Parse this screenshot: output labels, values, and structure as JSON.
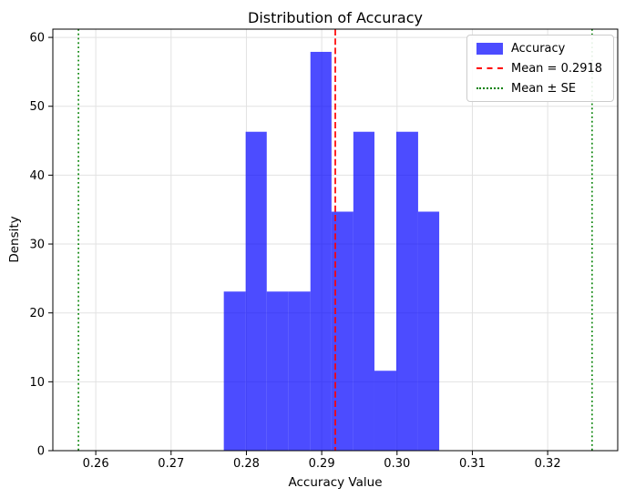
{
  "figure": {
    "title": "Distribution of Accuracy",
    "xlabel": "Accuracy Value",
    "ylabel": "Density"
  },
  "legend": {
    "position": "upper right",
    "items": [
      {
        "label": "Accuracy",
        "swatch": "blue-filled-patch"
      },
      {
        "label": "Mean = 0.2918",
        "swatch": "red-dashed-line"
      },
      {
        "label": "Mean ± SE",
        "swatch": "green-dotted-line"
      }
    ]
  },
  "chart_data": {
    "type": "bar",
    "subtype": "histogram",
    "title": "Distribution of Accuracy",
    "xlabel": "Accuracy Value",
    "ylabel": "Density",
    "bin_edges": [
      0.277,
      0.2799,
      0.2827,
      0.2856,
      0.2885,
      0.2913,
      0.2942,
      0.297,
      0.2999,
      0.3028,
      0.3056
    ],
    "densities": [
      23.1,
      46.3,
      23.1,
      23.1,
      57.9,
      34.7,
      46.3,
      11.6,
      46.3,
      34.7
    ],
    "mean": 0.2918,
    "mean_minus_se": 0.2577,
    "mean_plus_se": 0.3259,
    "xlim": [
      0.2543,
      0.3293
    ],
    "ylim": [
      0,
      61.2
    ],
    "xtick_values": [
      0.26,
      0.27,
      0.28,
      0.29,
      0.3,
      0.31,
      0.32
    ],
    "xtick_labels": [
      "0.26",
      "0.27",
      "0.28",
      "0.29",
      "0.30",
      "0.31",
      "0.32"
    ],
    "ytick_values": [
      0,
      10,
      20,
      30,
      40,
      50,
      60
    ],
    "ytick_labels": [
      "0",
      "10",
      "20",
      "30",
      "40",
      "50",
      "60"
    ],
    "grid": true,
    "legend_position": "upper right",
    "colors": {
      "bar_fill": "#0000ff",
      "bar_alpha": 0.7,
      "mean_line": "#ff0000",
      "se_line": "#008000",
      "grid": "#e2e2e2",
      "spine": "#000000"
    }
  }
}
